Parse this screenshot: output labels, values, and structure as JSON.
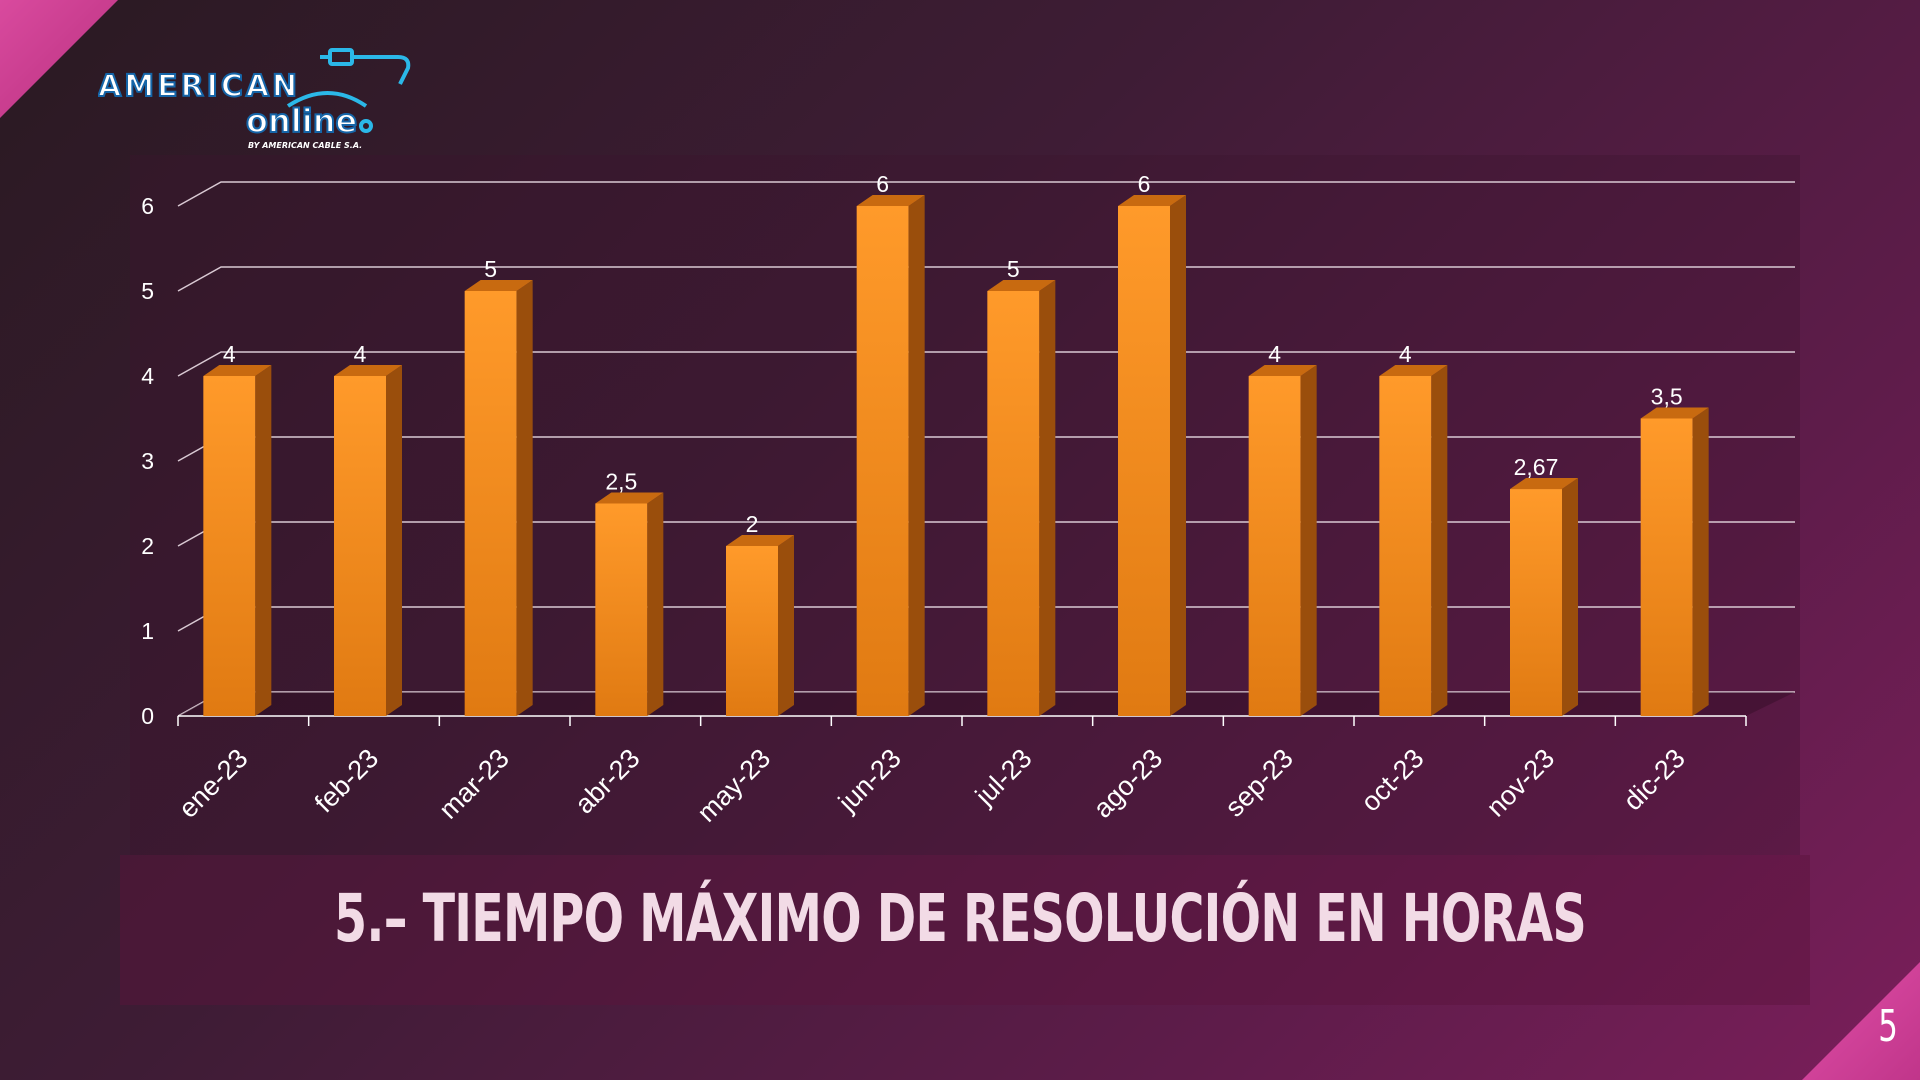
{
  "slide": {
    "title": "5.– TIEMPO MÁXIMO DE RESOLUCIÓN EN HORAS",
    "page_number": "5"
  },
  "logo": {
    "line1": "AMERICAN",
    "line2": "online",
    "tagline": "BY AMERICAN CABLE S.A."
  },
  "chart_data": {
    "type": "bar",
    "categories": [
      "ene-23",
      "feb-23",
      "mar-23",
      "abr-23",
      "may-23",
      "jun-23",
      "jul-23",
      "ago-23",
      "sep-23",
      "oct-23",
      "nov-23",
      "dic-23"
    ],
    "values": [
      4,
      4,
      5,
      2.5,
      2,
      6,
      5,
      6,
      4,
      4,
      2.67,
      3.5
    ],
    "data_labels": [
      "4",
      "4",
      "5",
      "2,5",
      "2",
      "6",
      "5",
      "6",
      "4",
      "4",
      "2,67",
      "3,5"
    ],
    "title": "",
    "xlabel": "",
    "ylabel": "",
    "ylim": [
      0,
      6
    ],
    "yticks": [
      "0",
      "1",
      "2",
      "3",
      "4",
      "5",
      "6"
    ],
    "grid": true,
    "legend": "none",
    "bar_color": "#f7931e"
  }
}
